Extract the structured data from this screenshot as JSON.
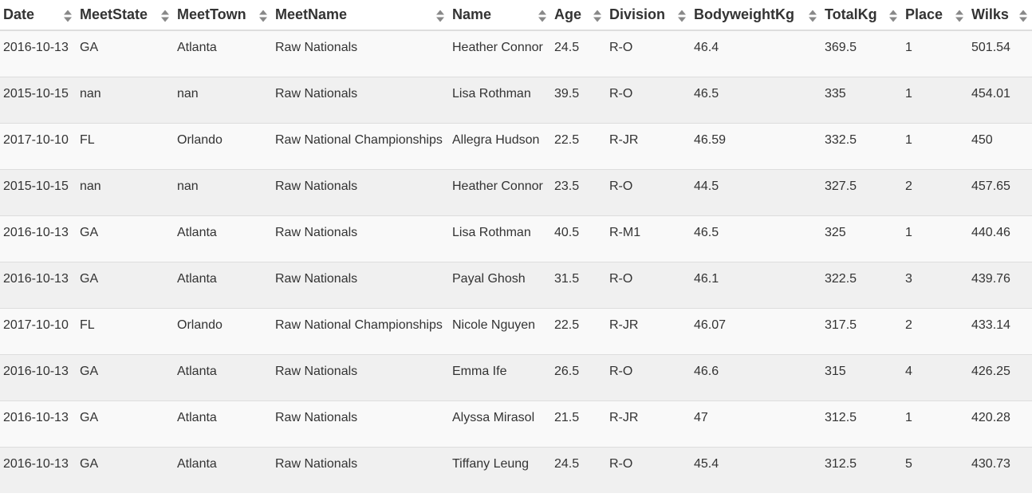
{
  "columns": [
    {
      "key": "date",
      "label": "Date"
    },
    {
      "key": "state",
      "label": "MeetState"
    },
    {
      "key": "town",
      "label": "MeetTown"
    },
    {
      "key": "meet",
      "label": "MeetName"
    },
    {
      "key": "name",
      "label": "Name"
    },
    {
      "key": "age",
      "label": "Age"
    },
    {
      "key": "division",
      "label": "Division"
    },
    {
      "key": "bw",
      "label": "BodyweightKg"
    },
    {
      "key": "total",
      "label": "TotalKg"
    },
    {
      "key": "place",
      "label": "Place"
    },
    {
      "key": "wilks",
      "label": "Wilks"
    }
  ],
  "rows": [
    {
      "date": "2016-10-13",
      "state": "GA",
      "town": "Atlanta",
      "meet": "Raw Nationals",
      "name": "Heather Connor",
      "age": "24.5",
      "division": "R-O",
      "bw": "46.4",
      "total": "369.5",
      "place": "1",
      "wilks": "501.54"
    },
    {
      "date": "2015-10-15",
      "state": "nan",
      "town": "nan",
      "meet": "Raw Nationals",
      "name": "Lisa Rothman",
      "age": "39.5",
      "division": "R-O",
      "bw": "46.5",
      "total": "335",
      "place": "1",
      "wilks": "454.01"
    },
    {
      "date": "2017-10-10",
      "state": "FL",
      "town": "Orlando",
      "meet": "Raw National Championships",
      "name": "Allegra Hudson",
      "age": "22.5",
      "division": "R-JR",
      "bw": "46.59",
      "total": "332.5",
      "place": "1",
      "wilks": "450"
    },
    {
      "date": "2015-10-15",
      "state": "nan",
      "town": "nan",
      "meet": "Raw Nationals",
      "name": "Heather Connor",
      "age": "23.5",
      "division": "R-O",
      "bw": "44.5",
      "total": "327.5",
      "place": "2",
      "wilks": "457.65"
    },
    {
      "date": "2016-10-13",
      "state": "GA",
      "town": "Atlanta",
      "meet": "Raw Nationals",
      "name": "Lisa Rothman",
      "age": "40.5",
      "division": "R-M1",
      "bw": "46.5",
      "total": "325",
      "place": "1",
      "wilks": "440.46"
    },
    {
      "date": "2016-10-13",
      "state": "GA",
      "town": "Atlanta",
      "meet": "Raw Nationals",
      "name": "Payal Ghosh",
      "age": "31.5",
      "division": "R-O",
      "bw": "46.1",
      "total": "322.5",
      "place": "3",
      "wilks": "439.76"
    },
    {
      "date": "2017-10-10",
      "state": "FL",
      "town": "Orlando",
      "meet": "Raw National Championships",
      "name": "Nicole Nguyen",
      "age": "22.5",
      "division": "R-JR",
      "bw": "46.07",
      "total": "317.5",
      "place": "2",
      "wilks": "433.14"
    },
    {
      "date": "2016-10-13",
      "state": "GA",
      "town": "Atlanta",
      "meet": "Raw Nationals",
      "name": "Emma Ife",
      "age": "26.5",
      "division": "R-O",
      "bw": "46.6",
      "total": "315",
      "place": "4",
      "wilks": "426.25"
    },
    {
      "date": "2016-10-13",
      "state": "GA",
      "town": "Atlanta",
      "meet": "Raw Nationals",
      "name": "Alyssa Mirasol",
      "age": "21.5",
      "division": "R-JR",
      "bw": "47",
      "total": "312.5",
      "place": "1",
      "wilks": "420.28"
    },
    {
      "date": "2016-10-13",
      "state": "GA",
      "town": "Atlanta",
      "meet": "Raw Nationals",
      "name": "Tiffany Leung",
      "age": "24.5",
      "division": "R-O",
      "bw": "45.4",
      "total": "312.5",
      "place": "5",
      "wilks": "430.73"
    }
  ],
  "icons": {
    "sort": "sort-both-icon"
  },
  "colors": {
    "row_odd": "#f9f9f9",
    "row_even": "#f0f0f0",
    "border": "#dddddd",
    "text": "#333333"
  }
}
